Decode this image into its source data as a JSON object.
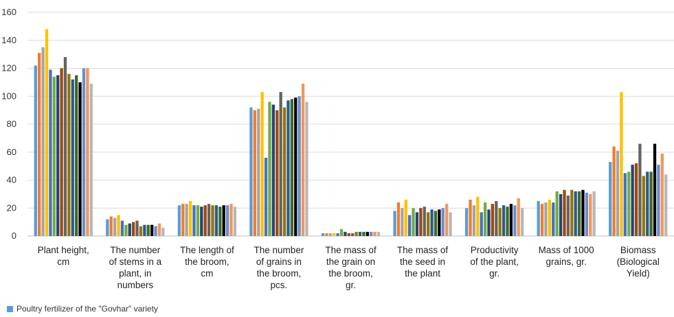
{
  "chart_data": {
    "type": "bar",
    "title": "",
    "xlabel": "",
    "ylabel": "",
    "ylim": [
      0,
      160
    ],
    "yticks": [
      0,
      20,
      40,
      60,
      80,
      100,
      120,
      140,
      160
    ],
    "ytick_labels": [
      "0",
      "20",
      "40",
      "60",
      "80",
      "100",
      "120",
      "140",
      "160"
    ],
    "grid": true,
    "legend_position": "bottom-left",
    "categories": [
      [
        "Plant height,",
        "cm"
      ],
      [
        "The number",
        "of stems in a",
        "plant, in",
        "numbers"
      ],
      [
        "The length of",
        "the broom,",
        "cm"
      ],
      [
        "The number",
        "of grains in",
        "the broom,",
        "pcs."
      ],
      [
        "The mass of",
        "the grain on",
        "the broom,",
        "gr."
      ],
      [
        "The mass of",
        "the seed in",
        "the plant"
      ],
      [
        "Productivity",
        "of the plant,",
        "gr."
      ],
      [
        "Mass of 1000",
        "grains, gr."
      ],
      [
        "Biomass",
        "(Biological",
        "Yield)"
      ]
    ],
    "colors": [
      "#5B9BD5",
      "#ED7D31",
      "#A5A5A5",
      "#FFC000",
      "#4472C4",
      "#70AD47",
      "#264478",
      "#9E480E",
      "#636363",
      "#997300",
      "#255E91",
      "#43682B",
      "#000000",
      "#698ED0",
      "#F1975A",
      "#B7B7B7"
    ],
    "values_by_category": [
      [
        122,
        131,
        135,
        148,
        119,
        114,
        115,
        120,
        128,
        116,
        112,
        115,
        110,
        120,
        120,
        109
      ],
      [
        12,
        14,
        13,
        15,
        11,
        8,
        9,
        10,
        11,
        7,
        8,
        8,
        8,
        7,
        9,
        6
      ],
      [
        22,
        23,
        23,
        25,
        22,
        22,
        21,
        22,
        23,
        22,
        22,
        21,
        22,
        22,
        23,
        21
      ],
      [
        92,
        90,
        91,
        103,
        56,
        96,
        94,
        90,
        103,
        92,
        97,
        98,
        99,
        100,
        109,
        96
      ],
      [
        2,
        2,
        2,
        2,
        2,
        5,
        3,
        2,
        2,
        3,
        3,
        3,
        3,
        3,
        3,
        3
      ],
      [
        18,
        24,
        20,
        26,
        15,
        20,
        17,
        20,
        21,
        17,
        19,
        18,
        19,
        20,
        23,
        17
      ],
      [
        20,
        26,
        22,
        28,
        17,
        24,
        19,
        23,
        25,
        20,
        22,
        21,
        23,
        22,
        27,
        20
      ],
      [
        25,
        23,
        24,
        26,
        24,
        32,
        30,
        33,
        29,
        33,
        32,
        32,
        33,
        31,
        30,
        32
      ],
      [
        53,
        64,
        61,
        103,
        45,
        46,
        51,
        52,
        66,
        43,
        46,
        46,
        66,
        51,
        59,
        44
      ]
    ],
    "legend": [
      {
        "label": "Poultry fertilizer of the \"Govhar\" variety",
        "color": "#5B9BD5"
      }
    ]
  }
}
